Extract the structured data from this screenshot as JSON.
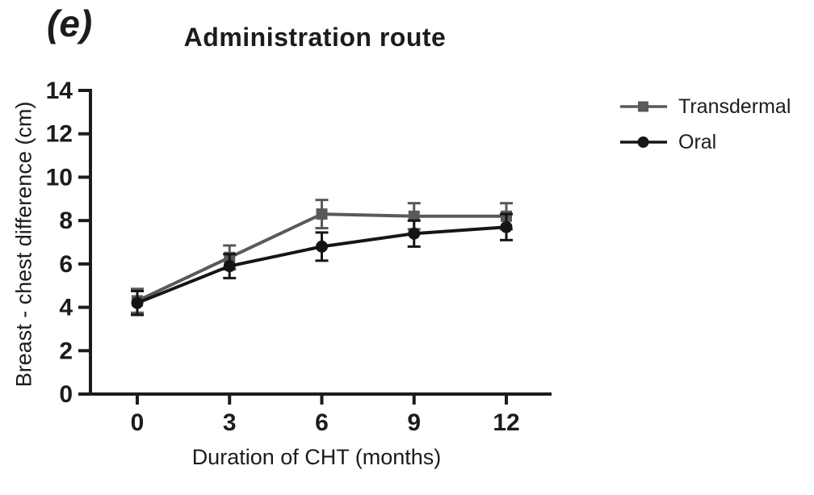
{
  "panel": {
    "label": "(e)"
  },
  "chart_data": {
    "type": "line",
    "title": "Administration route",
    "panel_label": "(e)",
    "xlabel": "Duration of CHT (months)",
    "ylabel": "Breast - chest difference (cm)",
    "x": [
      0,
      3,
      6,
      9,
      12
    ],
    "xticks": [
      "0",
      "3",
      "6",
      "9",
      "12"
    ],
    "yticks": [
      "0",
      "2",
      "4",
      "6",
      "8",
      "10",
      "12",
      "14"
    ],
    "xlim": [
      -1.8,
      13.5
    ],
    "ylim": [
      0,
      14
    ],
    "grid": false,
    "legend_position": "right-outside",
    "series": [
      {
        "name": "Transdermal",
        "marker": "square",
        "color": "#595959",
        "values": [
          4.3,
          6.3,
          8.3,
          8.2,
          8.2
        ],
        "errors": [
          0.55,
          0.55,
          0.65,
          0.6,
          0.6
        ]
      },
      {
        "name": "Oral",
        "marker": "circle",
        "color": "#151515",
        "values": [
          4.2,
          5.9,
          6.8,
          7.4,
          7.7
        ],
        "errors": [
          0.55,
          0.55,
          0.65,
          0.6,
          0.6
        ]
      }
    ]
  },
  "colors": {
    "background": "#ffffff",
    "axis": "#1c1c1c",
    "text": "#1c1c1c"
  }
}
